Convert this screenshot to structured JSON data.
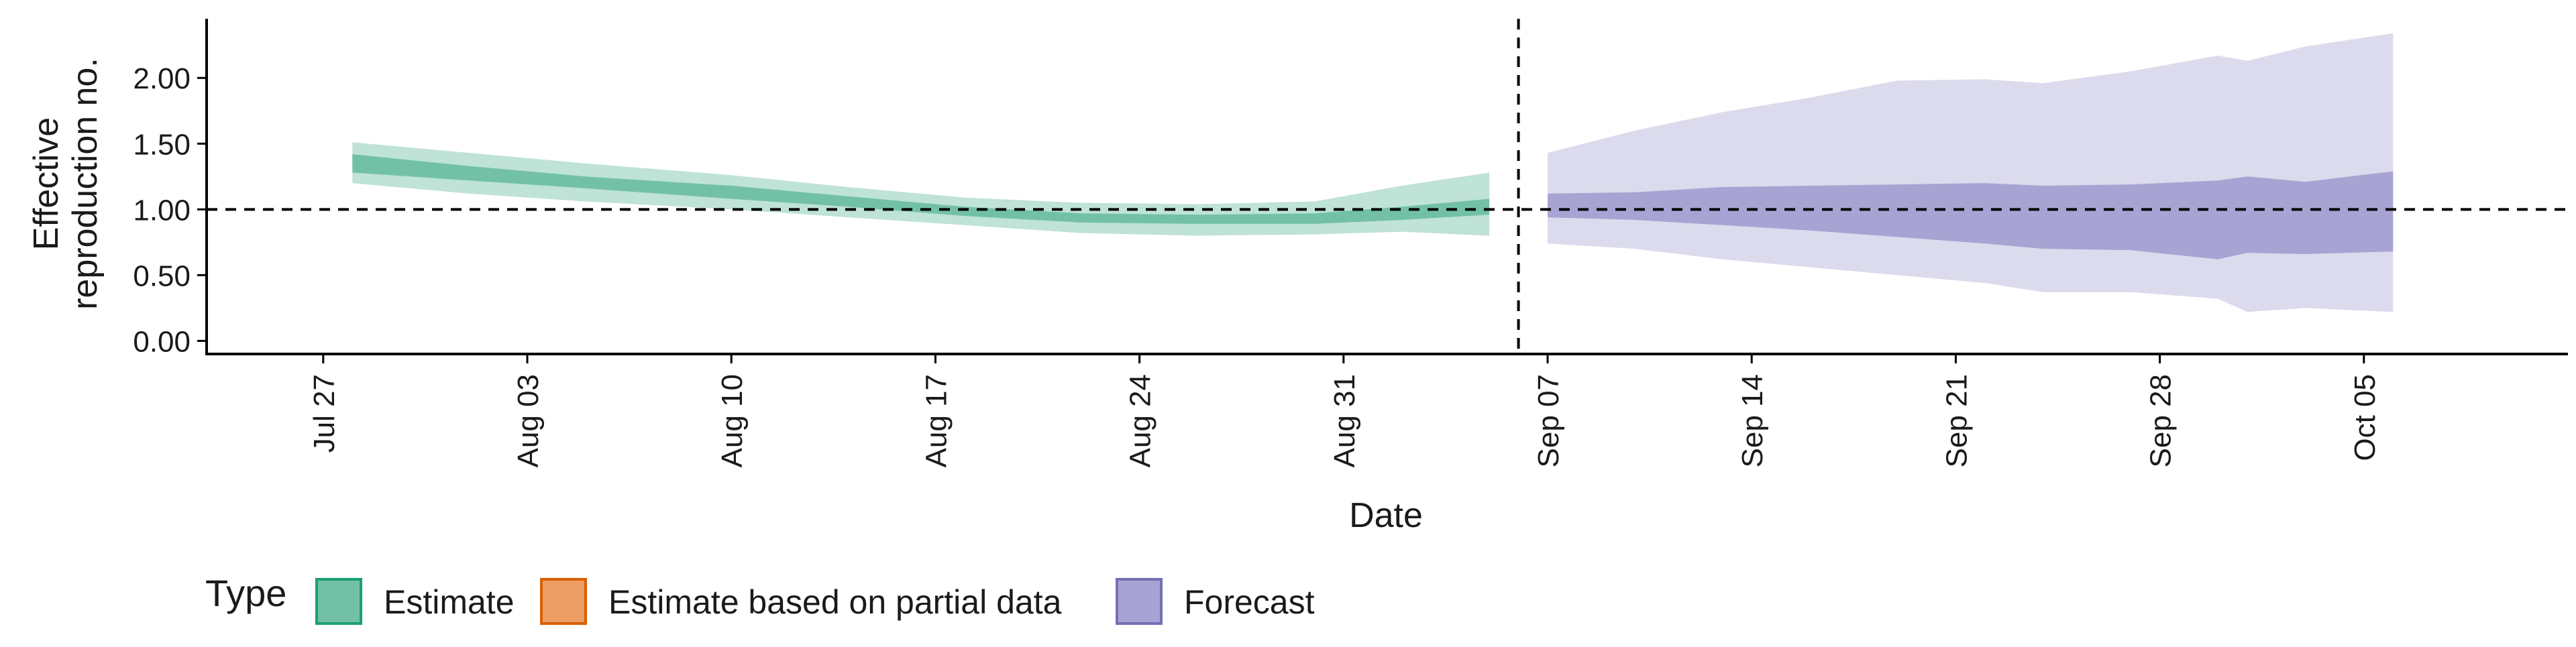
{
  "chart_data": {
    "type": "area",
    "ylabel_lines": [
      "Effective",
      "reproduction no."
    ],
    "xlabel": "Date",
    "ylim": [
      -0.1,
      2.45
    ],
    "xlim": [
      "2020-07-23",
      "2020-10-12"
    ],
    "y_ticks": [
      {
        "value": 0.0,
        "label": "0.00"
      },
      {
        "value": 0.5,
        "label": "0.50"
      },
      {
        "value": 1.0,
        "label": "1.00"
      },
      {
        "value": 1.5,
        "label": "1.50"
      },
      {
        "value": 2.0,
        "label": "2.00"
      }
    ],
    "x_ticks": [
      {
        "date": "2020-07-27",
        "label": "Jul 27"
      },
      {
        "date": "2020-08-03",
        "label": "Aug 03"
      },
      {
        "date": "2020-08-10",
        "label": "Aug 10"
      },
      {
        "date": "2020-08-17",
        "label": "Aug 17"
      },
      {
        "date": "2020-08-24",
        "label": "Aug 24"
      },
      {
        "date": "2020-08-31",
        "label": "Aug 31"
      },
      {
        "date": "2020-09-07",
        "label": "Sep 07"
      },
      {
        "date": "2020-09-14",
        "label": "Sep 14"
      },
      {
        "date": "2020-09-21",
        "label": "Sep 21"
      },
      {
        "date": "2020-09-28",
        "label": "Sep 28"
      },
      {
        "date": "2020-10-05",
        "label": "Oct 05"
      }
    ],
    "reference_line_y": 1.0,
    "split_line_date": "2020-09-06",
    "grid": false,
    "legend": {
      "title": "Type",
      "position": "bottom-left",
      "items": [
        {
          "label": "Estimate",
          "fill": "#72c1a6",
          "border": "#1b9e77"
        },
        {
          "label": "Estimate based on partial data",
          "fill": "#eb9d63",
          "border": "#d95f02"
        },
        {
          "label": "Forecast",
          "fill": "#a7a3d2",
          "border": "#7570b3"
        }
      ]
    },
    "series": [
      {
        "name": "Estimate",
        "colors": {
          "outer": "#bfe3d6",
          "inner": "#72c1a6"
        },
        "points": [
          {
            "x": "2020-07-28",
            "lo90": 1.2,
            "lo50": 1.28,
            "hi50": 1.42,
            "hi90": 1.51
          },
          {
            "x": "2020-08-01",
            "lo90": 1.12,
            "lo50": 1.22,
            "hi50": 1.33,
            "hi90": 1.43
          },
          {
            "x": "2020-08-05",
            "lo90": 1.06,
            "lo50": 1.16,
            "hi50": 1.25,
            "hi90": 1.35
          },
          {
            "x": "2020-08-10",
            "lo90": 1.0,
            "lo50": 1.08,
            "hi50": 1.18,
            "hi90": 1.26
          },
          {
            "x": "2020-08-14",
            "lo90": 0.94,
            "lo50": 1.02,
            "hi50": 1.1,
            "hi90": 1.17
          },
          {
            "x": "2020-08-18",
            "lo90": 0.88,
            "lo50": 0.95,
            "hi50": 1.02,
            "hi90": 1.09
          },
          {
            "x": "2020-08-22",
            "lo90": 0.82,
            "lo50": 0.9,
            "hi50": 0.97,
            "hi90": 1.05
          },
          {
            "x": "2020-08-26",
            "lo90": 0.8,
            "lo50": 0.89,
            "hi50": 0.96,
            "hi90": 1.04
          },
          {
            "x": "2020-08-30",
            "lo90": 0.81,
            "lo50": 0.89,
            "hi50": 0.97,
            "hi90": 1.06
          },
          {
            "x": "2020-09-02",
            "lo90": 0.83,
            "lo50": 0.92,
            "hi50": 1.02,
            "hi90": 1.18
          },
          {
            "x": "2020-09-05",
            "lo90": 0.8,
            "lo50": 0.96,
            "hi50": 1.08,
            "hi90": 1.28
          }
        ]
      },
      {
        "name": "Forecast",
        "colors": {
          "outer": "#dcdbed",
          "inner": "#a7a3d2"
        },
        "points": [
          {
            "x": "2020-09-07",
            "lo90": 0.74,
            "lo50": 0.94,
            "hi50": 1.12,
            "hi90": 1.43
          },
          {
            "x": "2020-09-10",
            "lo90": 0.7,
            "lo50": 0.92,
            "hi50": 1.13,
            "hi90": 1.6
          },
          {
            "x": "2020-09-13",
            "lo90": 0.62,
            "lo50": 0.88,
            "hi50": 1.17,
            "hi90": 1.74
          },
          {
            "x": "2020-09-16",
            "lo90": 0.56,
            "lo50": 0.84,
            "hi50": 1.18,
            "hi90": 1.85
          },
          {
            "x": "2020-09-19",
            "lo90": 0.5,
            "lo50": 0.79,
            "hi50": 1.19,
            "hi90": 1.98
          },
          {
            "x": "2020-09-22",
            "lo90": 0.44,
            "lo50": 0.74,
            "hi50": 1.2,
            "hi90": 1.99
          },
          {
            "x": "2020-09-24",
            "lo90": 0.37,
            "lo50": 0.7,
            "hi50": 1.18,
            "hi90": 1.96
          },
          {
            "x": "2020-09-27",
            "lo90": 0.37,
            "lo50": 0.69,
            "hi50": 1.19,
            "hi90": 2.05
          },
          {
            "x": "2020-09-30",
            "lo90": 0.32,
            "lo50": 0.62,
            "hi50": 1.22,
            "hi90": 2.17
          },
          {
            "x": "2020-10-01",
            "lo90": 0.22,
            "lo50": 0.67,
            "hi50": 1.25,
            "hi90": 2.13
          },
          {
            "x": "2020-10-03",
            "lo90": 0.25,
            "lo50": 0.66,
            "hi50": 1.21,
            "hi90": 2.24
          },
          {
            "x": "2020-10-06",
            "lo90": 0.22,
            "lo50": 0.68,
            "hi50": 1.29,
            "hi90": 2.34
          }
        ]
      }
    ]
  }
}
